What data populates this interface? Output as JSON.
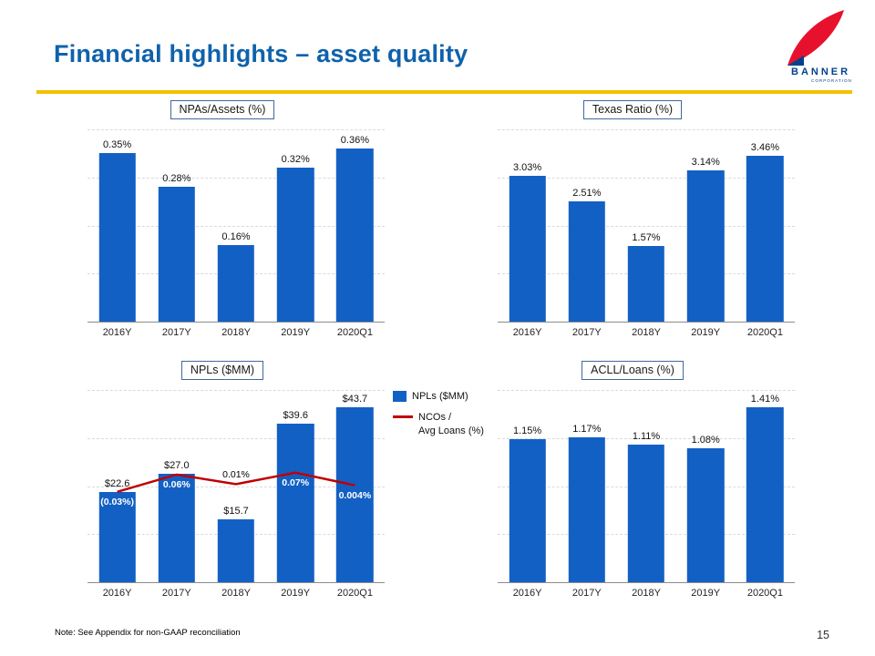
{
  "header": {
    "title": "Financial highlights – asset quality",
    "logo": {
      "name": "BANNER",
      "subname": "CORPORATION"
    }
  },
  "footer": {
    "note": "Note: See Appendix for non-GAAP reconciliation",
    "page_number": "15"
  },
  "colors": {
    "bar": "#1360C4",
    "line": "#C00000",
    "accent_yellow": "#F2C100",
    "title_blue": "#0F62AC",
    "logo_red": "#E8112D",
    "logo_blue": "#00438C"
  },
  "chart_data": [
    {
      "type": "bar",
      "title": "NPAs/Assets (%)",
      "categories": [
        "2016Y",
        "2017Y",
        "2018Y",
        "2019Y",
        "2020Q1"
      ],
      "values": [
        0.35,
        0.28,
        0.16,
        0.32,
        0.36
      ],
      "labels": [
        "0.35%",
        "0.28%",
        "0.16%",
        "0.32%",
        "0.36%"
      ],
      "xlabel": "",
      "ylabel": "",
      "ylim": [
        0,
        0.4
      ],
      "grid": true,
      "legend_position": "none"
    },
    {
      "type": "bar",
      "title": "Texas Ratio (%)",
      "categories": [
        "2016Y",
        "2017Y",
        "2018Y",
        "2019Y",
        "2020Q1"
      ],
      "values": [
        3.03,
        2.51,
        1.57,
        3.14,
        3.46
      ],
      "labels": [
        "3.03%",
        "2.51%",
        "1.57%",
        "3.14%",
        "3.46%"
      ],
      "xlabel": "",
      "ylabel": "",
      "ylim": [
        0,
        4.0
      ],
      "grid": true,
      "legend_position": "none"
    },
    {
      "type": "bar+line",
      "title": "NPLs ($MM)",
      "categories": [
        "2016Y",
        "2017Y",
        "2018Y",
        "2019Y",
        "2020Q1"
      ],
      "values": [
        22.6,
        27.0,
        15.7,
        39.6,
        43.7
      ],
      "labels": [
        "$22.6",
        "$27.0",
        "$15.7",
        "$39.6",
        "$43.7"
      ],
      "xlabel": "",
      "ylabel": "",
      "ylim": [
        0,
        48
      ],
      "grid": true,
      "legend_position": "right",
      "line": {
        "name": "NCOs / Avg Loans (%)",
        "values": [
          -0.03,
          0.06,
          0.01,
          0.07,
          0.004
        ],
        "labels": [
          "(0.03%)",
          "0.06%",
          "0.01%",
          "0.07%",
          "0.004%"
        ],
        "label_colors": [
          "#ffffff",
          "#ffffff",
          "#000000",
          "#ffffff",
          "#ffffff"
        ],
        "label_side": [
          "below",
          "below",
          "above",
          "below",
          "below"
        ],
        "ylim": [
          -0.5,
          0.5
        ],
        "color": "#C00000"
      },
      "legend": {
        "items": [
          {
            "swatch": "square",
            "color": "#1360C4",
            "label": "NPLs ($MM)"
          },
          {
            "swatch": "line",
            "color": "#C00000",
            "label": "NCOs /\nAvg Loans (%)"
          }
        ]
      }
    },
    {
      "type": "bar",
      "title": "ACLL/Loans (%)",
      "categories": [
        "2016Y",
        "2017Y",
        "2018Y",
        "2019Y",
        "2020Q1"
      ],
      "values": [
        1.15,
        1.17,
        1.11,
        1.08,
        1.41
      ],
      "labels": [
        "1.15%",
        "1.17%",
        "1.11%",
        "1.08%",
        "1.41%"
      ],
      "xlabel": "",
      "ylabel": "",
      "ylim": [
        0,
        1.55
      ],
      "grid": true,
      "legend_position": "none"
    }
  ]
}
